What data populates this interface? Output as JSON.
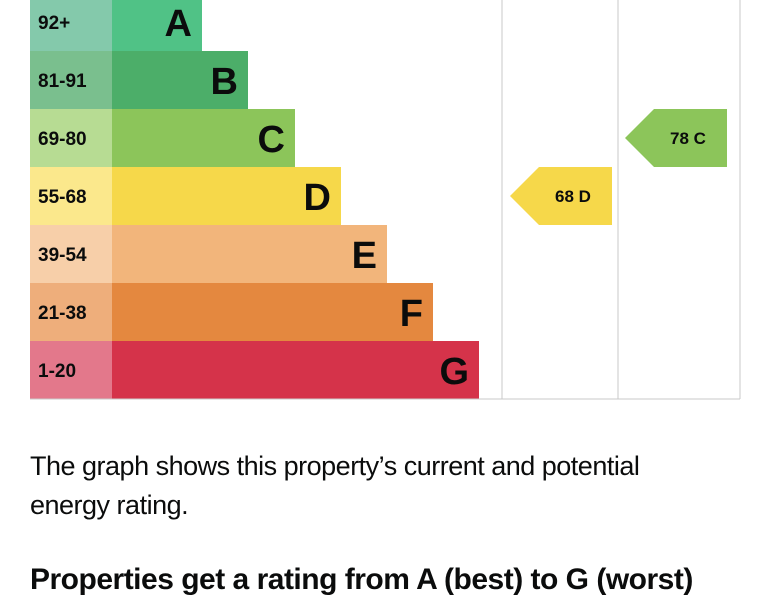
{
  "chart_data": {
    "type": "bar",
    "categories": [
      "A",
      "B",
      "C",
      "D",
      "E",
      "F",
      "G"
    ],
    "ranges": [
      "92+",
      "81-91",
      "69-80",
      "55-68",
      "39-54",
      "21-38",
      "1-20"
    ],
    "bar_colors": [
      "#50c286",
      "#4cae69",
      "#8cc55a",
      "#f6d84a",
      "#f2b57b",
      "#e4883f",
      "#d5334a"
    ],
    "label_colors": [
      "#84c9ab",
      "#7abf8e",
      "#b7dc93",
      "#fbe88c",
      "#f7cfa9",
      "#eeae7b",
      "#e3788b"
    ],
    "columns": [
      {
        "name": "current",
        "value": 68,
        "band": "D",
        "label": "68 D"
      },
      {
        "name": "potential",
        "value": 78,
        "band": "C",
        "label": "78 C"
      }
    ]
  },
  "text": {
    "description": "The graph shows this property’s current and potential energy rating.",
    "next_heading": "Properties get a rating from A (best) to G (worst)"
  }
}
